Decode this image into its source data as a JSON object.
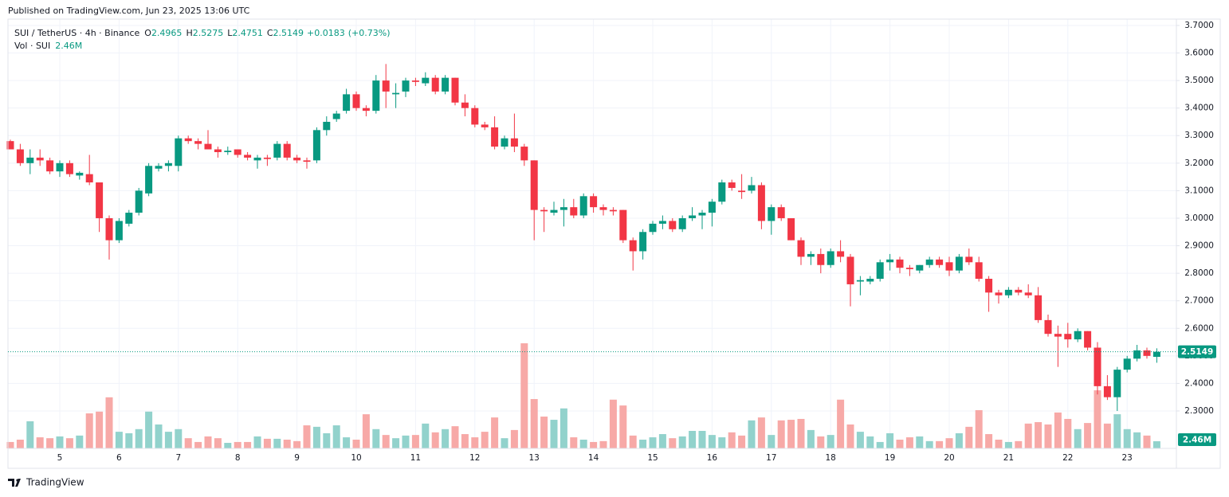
{
  "published": "Published on TradingView.com, Jun 23, 2025 13:06 UTC",
  "brand": "TradingView",
  "chart_data": {
    "type": "candlestick",
    "legend_title": "SUI / TetherUS · 4h · Binance",
    "legend_keys": [
      "O",
      "H",
      "L",
      "C"
    ],
    "change": "+0.0183",
    "change_pct": "(+0.73%)",
    "volume_title": "Vol · SUI",
    "last_volume_label": "2.46M",
    "up_color": "#089981",
    "down_color": "#f23645",
    "volume_up_color": "#92d2cc",
    "volume_down_color": "#f7a9a7",
    "grid": true,
    "categories": [
      null,
      null,
      null,
      null,
      null,
      "5",
      null,
      null,
      null,
      null,
      null,
      "6",
      null,
      null,
      null,
      null,
      null,
      "7",
      null,
      null,
      null,
      null,
      null,
      "8",
      null,
      null,
      null,
      null,
      null,
      "9",
      null,
      null,
      null,
      null,
      null,
      "10",
      null,
      null,
      null,
      null,
      null,
      "11",
      null,
      null,
      null,
      null,
      null,
      "12",
      null,
      null,
      null,
      null,
      null,
      "13",
      null,
      null,
      null,
      null,
      null,
      "14",
      null,
      null,
      null,
      null,
      null,
      "15",
      null,
      null,
      null,
      null,
      null,
      "16",
      null,
      null,
      null,
      null,
      null,
      "17",
      null,
      null,
      null,
      null,
      null,
      "18",
      null,
      null,
      null,
      null,
      null,
      "19",
      null,
      null,
      null,
      null,
      null,
      "20",
      null,
      null,
      null,
      null,
      null,
      "21",
      null,
      null,
      null,
      null,
      null,
      "22",
      null,
      null,
      null,
      null,
      null,
      "23",
      null,
      null,
      null
    ],
    "open": [
      3.28,
      3.25,
      3.2,
      3.22,
      3.21,
      3.17,
      3.2,
      3.155,
      3.16,
      3.13,
      3.0,
      2.92,
      2.98,
      3.02,
      3.09,
      3.18,
      3.19,
      3.19,
      3.29,
      3.28,
      3.27,
      3.25,
      3.24,
      3.25,
      3.23,
      3.21,
      3.22,
      3.22,
      3.27,
      3.22,
      3.21,
      3.21,
      3.32,
      3.36,
      3.39,
      3.45,
      3.4,
      3.39,
      3.5,
      3.45,
      3.46,
      3.5,
      3.49,
      3.51,
      3.46,
      3.51,
      3.42,
      3.4,
      3.34,
      3.33,
      3.26,
      3.29,
      3.26,
      3.21,
      3.03,
      3.02,
      3.03,
      3.04,
      3.01,
      3.08,
      3.04,
      3.03,
      3.03,
      2.92,
      2.88,
      2.95,
      2.98,
      2.99,
      2.96,
      3.0,
      3.01,
      3.02,
      3.06,
      3.13,
      3.1,
      3.1,
      3.12,
      2.99,
      3.04,
      3.0,
      2.92,
      2.86,
      2.87,
      2.83,
      2.88,
      2.86,
      2.77,
      2.77,
      2.78,
      2.84,
      2.85,
      2.82,
      2.81,
      2.83,
      2.85,
      2.84,
      2.81,
      2.86,
      2.84,
      2.78,
      2.73,
      2.72,
      2.74,
      2.73,
      2.72,
      2.63,
      2.58,
      2.58,
      2.56,
      2.59,
      2.53,
      2.39,
      2.35,
      2.45,
      2.49,
      2.52,
      2.4965
    ],
    "high": [
      3.285,
      3.27,
      3.25,
      3.25,
      3.22,
      3.21,
      3.21,
      3.17,
      3.23,
      3.13,
      3.01,
      3.0,
      3.03,
      3.11,
      3.2,
      3.2,
      3.21,
      3.3,
      3.3,
      3.29,
      3.32,
      3.26,
      3.26,
      3.25,
      3.24,
      3.23,
      3.23,
      3.28,
      3.28,
      3.23,
      3.22,
      3.33,
      3.37,
      3.39,
      3.47,
      3.46,
      3.41,
      3.52,
      3.56,
      3.49,
      3.51,
      3.51,
      3.53,
      3.52,
      3.52,
      3.51,
      3.45,
      3.41,
      3.35,
      3.37,
      3.3,
      3.38,
      3.27,
      3.21,
      3.04,
      3.06,
      3.07,
      3.07,
      3.09,
      3.09,
      3.05,
      3.04,
      3.03,
      2.93,
      2.96,
      2.99,
      3.01,
      3.0,
      3.01,
      3.04,
      3.03,
      3.07,
      3.14,
      3.14,
      3.16,
      3.15,
      3.13,
      3.05,
      3.05,
      3.0,
      2.93,
      2.88,
      2.89,
      2.89,
      2.92,
      2.87,
      2.79,
      2.79,
      2.85,
      2.87,
      2.86,
      2.83,
      2.83,
      2.86,
      2.86,
      2.86,
      2.87,
      2.89,
      2.86,
      2.79,
      2.74,
      2.75,
      2.75,
      2.76,
      2.75,
      2.65,
      2.61,
      2.62,
      2.6,
      2.59,
      2.55,
      2.43,
      2.46,
      2.5,
      2.54,
      2.53,
      2.5275
    ],
    "low": [
      3.25,
      3.19,
      3.16,
      3.19,
      3.16,
      3.15,
      3.15,
      3.14,
      3.12,
      2.95,
      2.85,
      2.91,
      2.97,
      3.01,
      3.08,
      3.17,
      3.17,
      3.17,
      3.27,
      3.25,
      3.25,
      3.22,
      3.23,
      3.22,
      3.21,
      3.18,
      3.19,
      3.21,
      3.21,
      3.2,
      3.18,
      3.2,
      3.3,
      3.35,
      3.38,
      3.39,
      3.37,
      3.38,
      3.4,
      3.4,
      3.44,
      3.48,
      3.48,
      3.45,
      3.45,
      3.41,
      3.37,
      3.33,
      3.32,
      3.25,
      3.25,
      3.24,
      3.19,
      2.92,
      2.95,
      3.01,
      2.97,
      3.0,
      3.0,
      3.02,
      3.01,
      3.01,
      2.91,
      2.81,
      2.85,
      2.94,
      2.96,
      2.95,
      2.95,
      2.99,
      2.96,
      2.97,
      3.05,
      3.1,
      3.07,
      3.09,
      2.96,
      2.94,
      2.99,
      2.92,
      2.83,
      2.83,
      2.8,
      2.82,
      2.84,
      2.68,
      2.72,
      2.76,
      2.77,
      2.81,
      2.8,
      2.79,
      2.8,
      2.82,
      2.82,
      2.79,
      2.8,
      2.83,
      2.77,
      2.66,
      2.69,
      2.71,
      2.72,
      2.71,
      2.62,
      2.57,
      2.46,
      2.53,
      2.55,
      2.52,
      2.36,
      2.34,
      2.3,
      2.44,
      2.48,
      2.49,
      2.4751
    ],
    "close": [
      3.25,
      3.2,
      3.22,
      3.21,
      3.17,
      3.2,
      3.16,
      3.165,
      3.13,
      3.0,
      2.92,
      2.99,
      3.02,
      3.1,
      3.19,
      3.19,
      3.2,
      3.29,
      3.28,
      3.27,
      3.25,
      3.24,
      3.245,
      3.23,
      3.22,
      3.22,
      3.215,
      3.27,
      3.22,
      3.21,
      3.205,
      3.32,
      3.35,
      3.38,
      3.45,
      3.4,
      3.39,
      3.5,
      3.46,
      3.455,
      3.5,
      3.495,
      3.51,
      3.46,
      3.51,
      3.42,
      3.4,
      3.34,
      3.33,
      3.26,
      3.29,
      3.26,
      3.21,
      3.03,
      3.025,
      3.03,
      3.04,
      3.01,
      3.08,
      3.04,
      3.03,
      3.025,
      2.92,
      2.88,
      2.95,
      2.98,
      2.99,
      2.96,
      3.0,
      3.01,
      3.02,
      3.06,
      3.13,
      3.11,
      3.095,
      3.12,
      2.99,
      3.04,
      3.0,
      2.92,
      2.86,
      2.87,
      2.83,
      2.88,
      2.86,
      2.76,
      2.775,
      2.78,
      2.84,
      2.85,
      2.82,
      2.815,
      2.83,
      2.85,
      2.83,
      2.81,
      2.86,
      2.84,
      2.78,
      2.73,
      2.72,
      2.74,
      2.73,
      2.72,
      2.63,
      2.58,
      2.57,
      2.56,
      2.59,
      2.53,
      2.39,
      2.35,
      2.45,
      2.49,
      2.52,
      2.5,
      2.5149
    ],
    "volume": [
      2.2,
      3.0,
      9.3,
      3.8,
      3.5,
      4.1,
      3.5,
      4.4,
      12.0,
      12.6,
      17.5,
      5.7,
      5.2,
      6.6,
      12.6,
      8.2,
      5.7,
      6.6,
      3.5,
      2.2,
      4.1,
      3.5,
      1.9,
      2.2,
      2.2,
      4.1,
      3.3,
      3.3,
      3.0,
      2.5,
      7.9,
      7.4,
      5.2,
      7.9,
      3.8,
      3.0,
      11.7,
      6.6,
      4.6,
      3.5,
      4.4,
      4.6,
      8.5,
      5.5,
      6.6,
      7.6,
      4.9,
      3.8,
      5.7,
      10.6,
      3.5,
      6.3,
      36.0,
      16.9,
      10.9,
      9.8,
      13.7,
      3.8,
      3.0,
      2.2,
      2.5,
      16.7,
      14.7,
      4.4,
      3.0,
      3.8,
      4.9,
      3.5,
      4.1,
      6.0,
      6.0,
      4.6,
      3.8,
      5.5,
      4.4,
      9.6,
      10.6,
      4.6,
      9.6,
      9.8,
      10.1,
      6.3,
      4.1,
      4.6,
      16.7,
      8.2,
      5.7,
      4.1,
      2.2,
      5.2,
      3.0,
      3.8,
      4.1,
      2.5,
      2.5,
      3.5,
      5.2,
      7.4,
      13.1,
      4.9,
      3.0,
      2.2,
      2.5,
      8.5,
      9.0,
      8.2,
      12.3,
      10.1,
      6.6,
      8.7,
      19.9,
      8.5,
      11.7,
      6.6,
      5.5,
      4.4,
      2.46
    ],
    "ylim": [
      2.164,
      3.723
    ],
    "yticks": [
      {
        "value": 2.3,
        "label": "2.3000"
      },
      {
        "value": 2.4,
        "label": "2.4000"
      },
      {
        "value": 2.5,
        "label": "2.5000"
      },
      {
        "value": 2.6,
        "label": "2.6000"
      },
      {
        "value": 2.7,
        "label": "2.7000"
      },
      {
        "value": 2.8,
        "label": "2.8000"
      },
      {
        "value": 2.9,
        "label": "2.9000"
      },
      {
        "value": 3.0,
        "label": "3.0000"
      },
      {
        "value": 3.1,
        "label": "3.1000"
      },
      {
        "value": 3.2,
        "label": "3.2000"
      },
      {
        "value": 3.3,
        "label": "3.3000"
      },
      {
        "value": 3.4,
        "label": "3.4000"
      },
      {
        "value": 3.5,
        "label": "3.5000"
      },
      {
        "value": 3.6,
        "label": "3.6000"
      },
      {
        "value": 3.7,
        "label": "3.7000"
      }
    ],
    "y2lim": [
      0,
      147
    ]
  }
}
